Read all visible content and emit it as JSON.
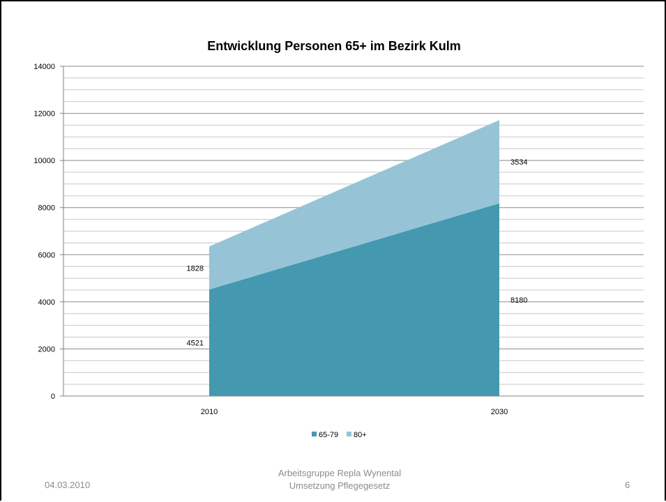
{
  "footer": {
    "date": "04.03.2010",
    "center_line1": "Arbeitsgruppe Repla Wynental",
    "center_line2": "Umsetzung Pflegegesetz",
    "page": "6"
  },
  "colors": {
    "series_65_79": "#4498b0",
    "series_80": "#96c4d6"
  },
  "chart_data": {
    "type": "area",
    "stacked": true,
    "title": "Entwicklung Personen 65+ im Bezirk Kulm",
    "categories": [
      "2010",
      "2030"
    ],
    "series": [
      {
        "name": "65-79",
        "values": [
          4521,
          8180
        ]
      },
      {
        "name": "80+",
        "values": [
          1828,
          3534
        ]
      }
    ],
    "ylim": [
      0,
      14000
    ],
    "yticks": [
      "0",
      "2000",
      "4000",
      "6000",
      "8000",
      "10000",
      "12000",
      "14000"
    ],
    "minor_step": 500,
    "grid": true,
    "legend_position": "bottom"
  }
}
